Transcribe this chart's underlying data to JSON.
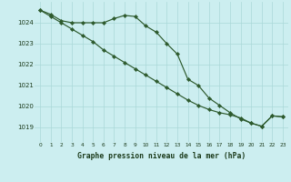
{
  "title": "Graphe pression niveau de la mer (hPa)",
  "bg_color": "#cceef0",
  "grid_color": "#aad8d8",
  "line_color": "#2d5a2d",
  "x_ticks": [
    0,
    1,
    2,
    3,
    4,
    5,
    6,
    7,
    8,
    9,
    10,
    11,
    12,
    13,
    14,
    15,
    16,
    17,
    18,
    19,
    20,
    21,
    22,
    23
  ],
  "y_ticks": [
    1019,
    1020,
    1021,
    1022,
    1023,
    1024
  ],
  "ylim": [
    1018.3,
    1025.0
  ],
  "xlim": [
    -0.5,
    23.5
  ],
  "line1": [
    1024.6,
    1024.4,
    1024.1,
    1024.0,
    1024.0,
    1024.0,
    1024.0,
    1024.2,
    1024.35,
    1024.3,
    1023.85,
    1023.55,
    1023.0,
    1022.5,
    1021.3,
    1021.0,
    1020.4,
    1020.05,
    1019.7,
    1019.4,
    1019.2,
    1019.05,
    1019.55,
    1019.5
  ],
  "line2": [
    1024.6,
    1024.3,
    1024.0,
    1023.7,
    1023.4,
    1023.1,
    1022.7,
    1022.4,
    1022.1,
    1021.8,
    1021.5,
    1021.2,
    1020.9,
    1020.6,
    1020.3,
    1020.05,
    1019.85,
    1019.7,
    1019.6,
    1019.45,
    1019.2,
    1019.05,
    1019.55,
    1019.5
  ]
}
